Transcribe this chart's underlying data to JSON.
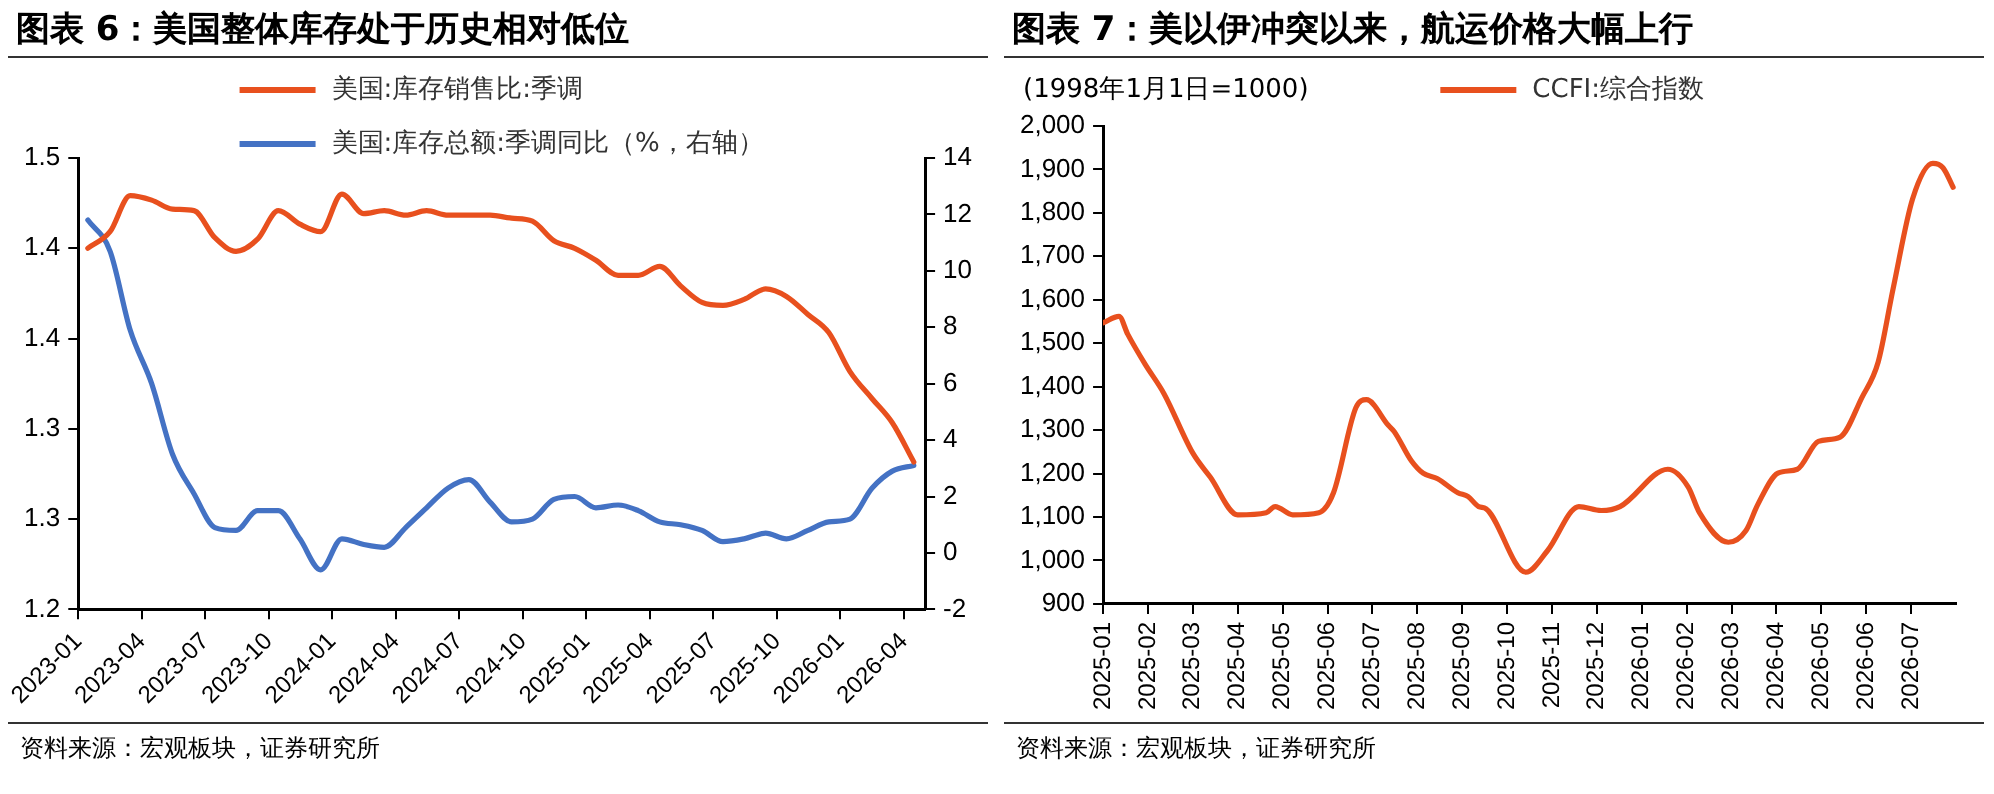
{
  "chart_data": [
    {
      "type": "line",
      "title": "图表 6：美国整体库存处于历史相对低位",
      "x": [
        "2023-01-15",
        "2023-02-15",
        "2023-03-15",
        "2023-04-15",
        "2023-05-15",
        "2023-06-15",
        "2023-07-15",
        "2023-08-15",
        "2023-09-15",
        "2023-10-15",
        "2023-11-15",
        "2023-12-15",
        "2024-01-15",
        "2024-02-15",
        "2024-03-15",
        "2024-04-15",
        "2024-05-15",
        "2024-06-15",
        "2024-07-15",
        "2024-08-15",
        "2024-09-15",
        "2024-10-15",
        "2024-11-15",
        "2024-12-15",
        "2025-01-15",
        "2025-02-15",
        "2025-03-15",
        "2025-04-15",
        "2025-05-15",
        "2025-06-15",
        "2025-07-15",
        "2025-08-15",
        "2025-09-15",
        "2025-10-15",
        "2025-11-15",
        "2025-12-15",
        "2026-01-15",
        "2026-02-15",
        "2026-03-15",
        "2026-04-15"
      ],
      "series": [
        {
          "name": "美国:库存销售比:季调",
          "color": "#e8501e",
          "values": [
            1.44,
            1.451,
            1.475,
            1.472,
            1.466,
            1.465,
            1.447,
            1.438,
            1.446,
            1.465,
            1.456,
            1.451,
            1.476,
            1.463,
            1.465,
            1.462,
            1.465,
            1.462,
            1.462,
            1.462,
            1.46,
            1.458,
            1.445,
            1.44,
            1.432,
            1.422,
            1.422,
            1.428,
            1.415,
            1.404,
            1.402,
            1.406,
            1.413,
            1.408,
            1.396,
            1.384,
            1.358,
            1.34,
            1.324,
            1.298
          ]
        },
        {
          "name": "美国:库存总额:季调同比（%，右轴）",
          "color": "#4472c4",
          "axis": "y2",
          "values": [
            11.8,
            10.7,
            7.9,
            6.0,
            3.5,
            2.1,
            0.9,
            0.8,
            1.5,
            1.5,
            0.5,
            -0.6,
            0.5,
            0.3,
            0.2,
            0.9,
            1.6,
            2.3,
            2.6,
            1.8,
            1.1,
            1.2,
            1.9,
            2.0,
            1.6,
            1.7,
            1.5,
            1.1,
            1.0,
            0.8,
            0.4,
            0.5,
            0.7,
            0.5,
            0.8,
            1.1,
            1.2,
            2.3,
            2.9,
            3.1
          ]
        }
      ],
      "xlim": [
        "2023-01",
        "2026-05"
      ],
      "xticks": [
        "2023-01",
        "2023-04",
        "2023-07",
        "2023-10",
        "2024-01",
        "2024-04",
        "2024-07",
        "2024-10",
        "2025-01",
        "2025-04",
        "2025-07",
        "2025-10",
        "2026-01",
        "2026-04"
      ],
      "ylim": [
        1.2,
        1.5
      ],
      "yticks": [
        {
          "value": 1.2,
          "label": "1.2"
        },
        {
          "value": 1.26,
          "label": "1.3"
        },
        {
          "value": 1.32,
          "label": "1.3"
        },
        {
          "value": 1.38,
          "label": "1.4"
        },
        {
          "value": 1.44,
          "label": "1.4"
        },
        {
          "value": 1.5,
          "label": "1.5"
        }
      ],
      "y2lim": [
        -2,
        14
      ],
      "y2ticks": [
        -2,
        0,
        2,
        4,
        6,
        8,
        10,
        12,
        14
      ],
      "grid": false,
      "legend": "top",
      "marker": "none",
      "line_style": "solid",
      "annotations": [
        "资料来源：宏观板块，证券研究所"
      ]
    },
    {
      "type": "line",
      "title": "图表 7：美以伊冲突以来，航运价格大幅上行",
      "ylabel": "(1998年1月1日=1000)",
      "x": [
        "2025-01-01",
        "2025-01-12",
        "2025-01-18",
        "2025-01-30",
        "2025-02-11",
        "2025-03-01",
        "2025-03-13",
        "2025-04-01",
        "2025-04-20",
        "2025-04-26",
        "2025-05-08",
        "2025-05-26",
        "2025-06-05",
        "2025-06-20",
        "2025-06-27",
        "2025-07-12",
        "2025-07-16",
        "2025-07-28",
        "2025-08-05",
        "2025-08-15",
        "2025-08-29",
        "2025-09-05",
        "2025-09-12",
        "2025-09-17",
        "2025-10-14",
        "2025-10-29",
        "2025-11-19",
        "2025-12-04",
        "2025-12-17",
        "2026-01-19",
        "2026-02-02",
        "2026-02-09",
        "2026-02-27",
        "2026-03-11",
        "2026-03-19",
        "2026-04-02",
        "2026-04-15",
        "2026-04-29",
        "2026-05-14",
        "2026-05-29",
        "2026-06-09",
        "2026-06-19",
        "2026-07-02",
        "2026-07-16",
        "2026-07-23",
        "2026-07-30"
      ],
      "series": [
        {
          "name": "CCFI:综合指数",
          "color": "#e8501e",
          "values": [
            1547,
            1562,
            1521,
            1452,
            1384,
            1247,
            1192,
            1105,
            1110,
            1124,
            1105,
            1110,
            1156,
            1352,
            1370,
            1311,
            1297,
            1229,
            1201,
            1188,
            1156,
            1147,
            1124,
            1119,
            973,
            1023,
            1124,
            1115,
            1124,
            1210,
            1169,
            1110,
            1042,
            1069,
            1128,
            1201,
            1210,
            1274,
            1284,
            1375,
            1457,
            1626,
            1832,
            1914,
            1904,
            1859
          ]
        }
      ],
      "xlim": [
        "2025-01",
        "2026-08"
      ],
      "xticks": [
        "2025-01",
        "2025-02",
        "2025-03",
        "2025-04",
        "2025-05",
        "2025-06",
        "2025-07",
        "2025-08",
        "2025-09",
        "2025-10",
        "2025-11",
        "2025-12",
        "2026-01",
        "2026-02",
        "2026-03",
        "2026-04",
        "2026-05",
        "2026-06",
        "2026-07"
      ],
      "ylim": [
        900,
        2000
      ],
      "yticks": [
        {
          "value": 900,
          "label": "900"
        },
        {
          "value": 1000,
          "label": "1,000"
        },
        {
          "value": 1100,
          "label": "1,100"
        },
        {
          "value": 1200,
          "label": "1,200"
        },
        {
          "value": 1300,
          "label": "1,300"
        },
        {
          "value": 1400,
          "label": "1,400"
        },
        {
          "value": 1500,
          "label": "1,500"
        },
        {
          "value": 1600,
          "label": "1,600"
        },
        {
          "value": 1700,
          "label": "1,700"
        },
        {
          "value": 1800,
          "label": "1,800"
        },
        {
          "value": 1900,
          "label": "1,900"
        },
        {
          "value": 2000,
          "label": "2,000"
        }
      ],
      "grid": false,
      "legend": "top",
      "marker": "none",
      "line_style": "solid",
      "annotations": [
        "资料来源：宏观板块，证券研究所"
      ]
    }
  ]
}
